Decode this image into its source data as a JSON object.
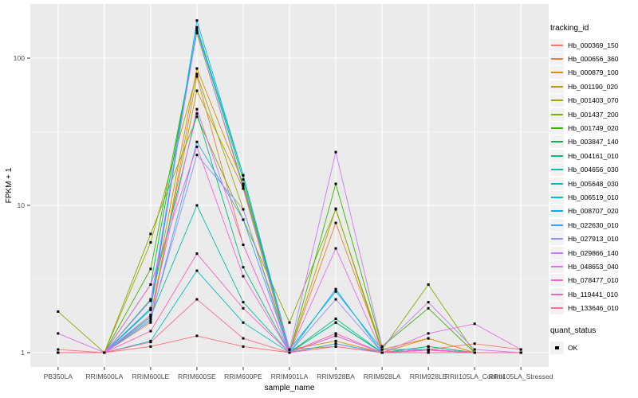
{
  "colors": {
    "panel_bg": "#EBEBEB",
    "grid_major": "#FFFFFF",
    "grid_minor": "rgba(255,255,255,0.55)",
    "tick_mark": "#333333",
    "tick_text": "#4D4D4D",
    "point": "#000000"
  },
  "legend": {
    "tracking_title": "tracking_id",
    "quant_title": "quant_status",
    "quant_items": [
      {
        "label": "OK",
        "marker": "black-square"
      }
    ]
  },
  "chart_data": {
    "type": "line",
    "title": "",
    "xlabel": "sample_name",
    "ylabel": "FPKM + 1",
    "y_scale": "log10",
    "ylim": [
      0.8,
      233
    ],
    "yticks": [
      1,
      10,
      100
    ],
    "ytick_labels": [
      "1",
      "10",
      "100"
    ],
    "y_minor": [
      3.162,
      31.62
    ],
    "grid": true,
    "legend_title": "tracking_id",
    "legend_position": "right",
    "point_marker": "black-square",
    "categories": [
      "PB350LA",
      "RRIM600LA",
      "RRIM600LE",
      "RRIM600SE",
      "RRIM600PE",
      "RRIM901LA",
      "RRIM928BA",
      "RRIM928LA",
      "RRIM928LE",
      "RRII105LA_Control",
      "RRII105LA_Stressed"
    ],
    "series": [
      {
        "name": "Hb_000369_150",
        "color": "#F8766D",
        "values": [
          1.05,
          1,
          1.1,
          1.3,
          1.1,
          1,
          1.15,
          1,
          1.05,
          1.15,
          1.05
        ]
      },
      {
        "name": "Hb_000656_360",
        "color": "#EA8331",
        "values": [
          1,
          1,
          1.6,
          75,
          5.4,
          1,
          7.6,
          1.05,
          1.25,
          1,
          1
        ]
      },
      {
        "name": "Hb_000879_100",
        "color": "#D89000",
        "values": [
          1,
          1,
          2,
          85,
          14,
          1.05,
          1.2,
          1,
          1.25,
          1,
          1
        ]
      },
      {
        "name": "Hb_001190_020",
        "color": "#C09B00",
        "values": [
          1,
          1,
          1.8,
          60,
          13,
          1,
          9.5,
          1,
          1.1,
          1,
          1
        ]
      },
      {
        "name": "Hb_001403_070",
        "color": "#A3A500",
        "values": [
          1,
          1,
          5.6,
          78,
          9.4,
          1.05,
          1.1,
          1,
          1.05,
          1,
          1
        ]
      },
      {
        "name": "Hb_001437_200",
        "color": "#7CAE00",
        "values": [
          1.9,
          1,
          6.4,
          40,
          8,
          1.6,
          9.4,
          1.05,
          2.9,
          1,
          1
        ]
      },
      {
        "name": "Hb_001749_020",
        "color": "#39B600",
        "values": [
          1,
          1,
          3.7,
          148,
          13.5,
          1,
          14,
          1.1,
          2,
          1,
          1
        ]
      },
      {
        "name": "Hb_003847_140",
        "color": "#00BB4E",
        "values": [
          1,
          1,
          2.9,
          157,
          15,
          1,
          1.6,
          1,
          1.05,
          1,
          1
        ]
      },
      {
        "name": "Hb_004161_010",
        "color": "#00BF7D",
        "values": [
          1,
          1,
          2.3,
          42,
          3.8,
          1,
          1.7,
          1,
          1.1,
          1,
          1
        ]
      },
      {
        "name": "Hb_004656_030",
        "color": "#00C1A3",
        "values": [
          1,
          1,
          1.75,
          10,
          2.2,
          1,
          1.6,
          1,
          1.05,
          1,
          1
        ]
      },
      {
        "name": "Hb_005648_030",
        "color": "#00BFC4",
        "values": [
          1,
          1,
          1.2,
          3.6,
          1.6,
          1,
          1.3,
          1,
          1.04,
          1,
          1
        ]
      },
      {
        "name": "Hb_006519_010",
        "color": "#00BAE0",
        "values": [
          1,
          1,
          2,
          180,
          16,
          1.05,
          2.6,
          1.05,
          1.05,
          1,
          1
        ]
      },
      {
        "name": "Hb_008707_020",
        "color": "#00B0F6",
        "values": [
          1,
          1,
          1.95,
          162,
          16,
          1,
          2.7,
          1,
          1.04,
          1,
          1
        ]
      },
      {
        "name": "Hb_022630_010",
        "color": "#35A2FF",
        "values": [
          1,
          1,
          1.65,
          27,
          8,
          1,
          1.15,
          1,
          1,
          1,
          1
        ]
      },
      {
        "name": "Hb_027913_010",
        "color": "#9590FF",
        "values": [
          1,
          1,
          1.7,
          22,
          9.4,
          1,
          2.3,
          1,
          1.05,
          1,
          1
        ]
      },
      {
        "name": "Hb_029866_140",
        "color": "#C77CFF",
        "values": [
          1,
          1,
          2.25,
          152,
          13,
          1.05,
          23,
          1.1,
          2.2,
          1.05,
          1
        ]
      },
      {
        "name": "Hb_048653_040",
        "color": "#E76BF3",
        "values": [
          1.35,
          1,
          1.8,
          45,
          5.4,
          1,
          5.1,
          1,
          1.35,
          1.57,
          1.05
        ]
      },
      {
        "name": "Hb_078477_010",
        "color": "#FA62DB",
        "values": [
          1,
          1,
          2.9,
          25,
          3.3,
          1,
          1.3,
          1,
          1.05,
          1,
          1
        ]
      },
      {
        "name": "Hb_119441_010",
        "color": "#FF62BC",
        "values": [
          1,
          1,
          1.4,
          4.7,
          2,
          1,
          1.35,
          1,
          1.04,
          1,
          1
        ]
      },
      {
        "name": "Hb_133646_010",
        "color": "#FF6A98",
        "values": [
          1,
          1,
          1.18,
          2.3,
          1.25,
          1,
          1.1,
          1,
          1,
          1,
          1
        ]
      }
    ]
  }
}
